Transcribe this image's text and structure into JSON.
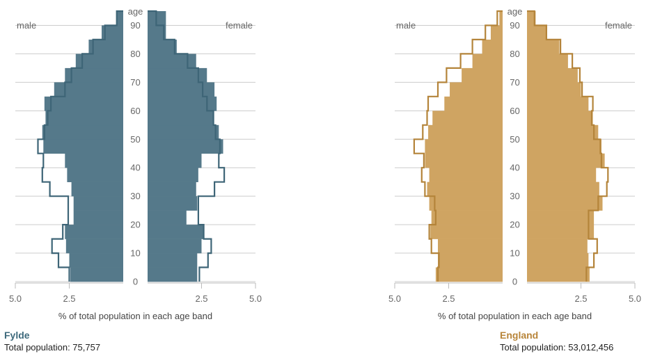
{
  "chart_data": [
    {
      "type": "population-pyramid",
      "area_name": "Fylde",
      "total_label": "Total population: 75,757",
      "fill_color": "#55798a",
      "outline_color": "#3e6577",
      "outline_label": "England",
      "left_label": "male",
      "right_label": "female",
      "age_label": "age",
      "xlabel": "% of total population in each age band",
      "x_ticks": [
        "5.0",
        "2.5",
        "2.5",
        "5.0"
      ],
      "age_ticks": [
        0,
        10,
        20,
        30,
        40,
        50,
        60,
        70,
        80,
        90
      ],
      "xlim": [
        0,
        5.0
      ],
      "age_bands": [
        "0-4",
        "5-9",
        "10-14",
        "15-19",
        "20-24",
        "25-29",
        "30-34",
        "35-39",
        "40-44",
        "45-49",
        "50-54",
        "55-59",
        "60-64",
        "65-69",
        "70-74",
        "75-79",
        "80-84",
        "85-89",
        "90+"
      ],
      "male": [
        2.45,
        2.5,
        2.65,
        2.7,
        2.3,
        2.3,
        2.4,
        2.6,
        2.7,
        3.7,
        3.75,
        3.6,
        3.65,
        3.2,
        2.7,
        2.2,
        1.6,
        1.0,
        0.3
      ],
      "female": [
        2.3,
        2.3,
        2.5,
        2.6,
        1.8,
        2.3,
        2.25,
        2.35,
        2.5,
        3.5,
        3.3,
        3.05,
        3.2,
        3.1,
        2.75,
        2.25,
        1.35,
        0.85,
        0.85
      ],
      "male_outline": [
        2.5,
        3.0,
        3.3,
        2.8,
        2.55,
        2.55,
        3.4,
        3.75,
        3.7,
        3.95,
        3.65,
        3.5,
        3.35,
        2.7,
        2.4,
        1.9,
        1.4,
        0.85,
        0.3
      ],
      "female_outline": [
        2.4,
        2.8,
        2.95,
        2.6,
        2.35,
        2.35,
        3.1,
        3.55,
        3.3,
        3.35,
        3.15,
        3.05,
        2.75,
        2.55,
        2.35,
        1.85,
        1.25,
        0.75,
        0.4
      ]
    },
    {
      "type": "population-pyramid",
      "area_name": "England",
      "total_label": "Total population: 53,012,456",
      "fill_color": "#cfa462",
      "outline_color": "#b4843a",
      "outline_label": "Fylde",
      "left_label": "male",
      "right_label": "female",
      "age_label": "age",
      "xlabel": "% of total population in each age band",
      "x_ticks": [
        "5.0",
        "2.5",
        "2.5",
        "5.0"
      ],
      "age_ticks": [
        0,
        10,
        20,
        30,
        40,
        50,
        60,
        70,
        80,
        90
      ],
      "xlim": [
        0,
        5.0
      ],
      "age_bands": [
        "0-4",
        "5-9",
        "10-14",
        "15-19",
        "20-24",
        "25-29",
        "30-34",
        "35-39",
        "40-44",
        "45-49",
        "50-54",
        "55-59",
        "60-64",
        "65-69",
        "70-74",
        "75-79",
        "80-84",
        "85-89",
        "90+"
      ],
      "male": [
        3.1,
        3.0,
        3.0,
        3.35,
        3.3,
        3.4,
        3.5,
        3.4,
        3.6,
        3.6,
        3.45,
        3.25,
        2.7,
        2.45,
        1.9,
        1.4,
        0.95,
        0.55,
        0.15
      ],
      "female": [
        2.9,
        2.85,
        2.8,
        3.1,
        3.1,
        3.5,
        3.35,
        3.2,
        3.6,
        3.45,
        3.3,
        3.05,
        2.85,
        2.5,
        2.35,
        1.9,
        1.5,
        0.9,
        0.4
      ],
      "male_outline": [
        3.0,
        2.95,
        3.3,
        3.4,
        3.1,
        3.15,
        3.6,
        3.75,
        3.65,
        4.1,
        3.7,
        3.5,
        3.45,
        3.0,
        2.6,
        1.95,
        1.4,
        0.8,
        0.25
      ],
      "female_outline": [
        2.75,
        3.1,
        3.25,
        2.85,
        2.85,
        3.3,
        3.7,
        3.75,
        3.45,
        3.4,
        3.1,
        3.0,
        3.05,
        2.55,
        2.45,
        2.1,
        1.55,
        0.9,
        0.35
      ]
    }
  ]
}
